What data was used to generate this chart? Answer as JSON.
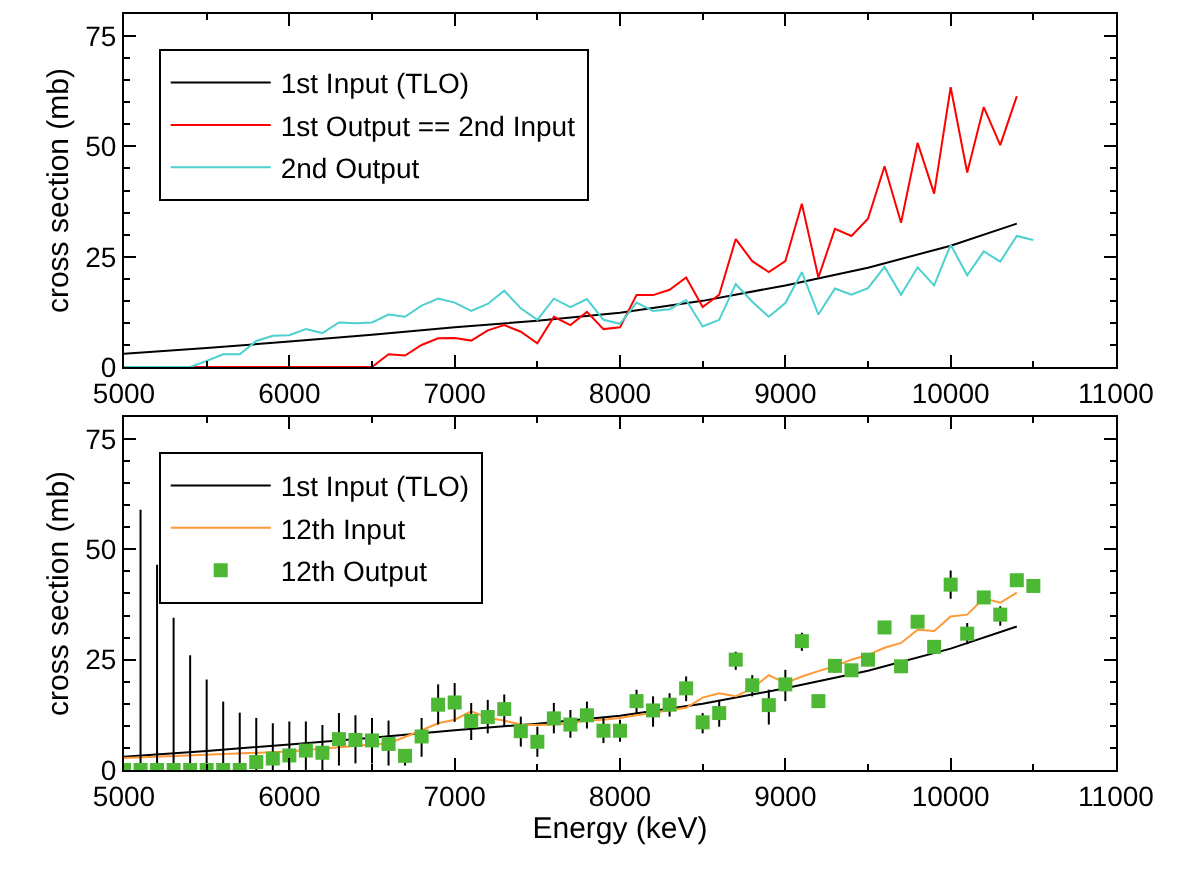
{
  "chart_data": [
    {
      "type": "line",
      "ylabel": "cross section (mb)",
      "xlim": [
        5000,
        11000
      ],
      "xticks": [
        5000,
        6000,
        7000,
        8000,
        9000,
        10000,
        11000
      ],
      "ylim": [
        0,
        80
      ],
      "yticks": [
        0,
        25,
        50,
        75
      ],
      "legend": "top left",
      "series": [
        {
          "name": "1st Input (TLO)",
          "color": "#000000",
          "x": [
            5000,
            5500,
            6000,
            6500,
            7000,
            7500,
            8000,
            8500,
            9000,
            9500,
            10000,
            10400
          ],
          "values": [
            3,
            4.3,
            5.8,
            7.3,
            9,
            10.5,
            12.3,
            15,
            18.5,
            22.5,
            27.5,
            32.5
          ]
        },
        {
          "name": "1st Output == 2nd Input",
          "color": "#ff0000",
          "x": [
            5000,
            5500,
            6000,
            6500,
            6600,
            6700,
            6800,
            6900,
            7000,
            7100,
            7200,
            7300,
            7400,
            7500,
            7600,
            7700,
            7800,
            7900,
            8000,
            8100,
            8200,
            8300,
            8400,
            8500,
            8600,
            8700,
            8800,
            8900,
            9000,
            9100,
            9200,
            9300,
            9400,
            9500,
            9600,
            9700,
            9800,
            9900,
            10000,
            10100,
            10200,
            10300,
            10400
          ],
          "values": [
            0,
            0,
            0,
            0,
            2.9,
            2.6,
            5,
            6.5,
            6.6,
            6,
            8.3,
            9.5,
            8,
            5.4,
            11.4,
            9.5,
            12.5,
            8.6,
            9,
            16.3,
            16.3,
            17.5,
            20.3,
            13.6,
            16.4,
            29,
            24,
            21.5,
            24,
            37,
            20.3,
            31.3,
            29.7,
            33.6,
            45.5,
            32.7,
            50.8,
            39.3,
            63.4,
            44.1,
            58.9,
            50.3,
            61.4
          ]
        },
        {
          "name": "2nd Output",
          "color": "#4dd0d0",
          "x": [
            5000,
            5200,
            5400,
            5500,
            5600,
            5700,
            5800,
            5900,
            6000,
            6100,
            6200,
            6300,
            6400,
            6500,
            6600,
            6700,
            6800,
            6900,
            7000,
            7100,
            7200,
            7300,
            7400,
            7500,
            7600,
            7700,
            7800,
            7900,
            8000,
            8100,
            8200,
            8300,
            8400,
            8500,
            8600,
            8700,
            8800,
            8900,
            9000,
            9100,
            9200,
            9300,
            9400,
            9500,
            9600,
            9700,
            9800,
            9900,
            10000,
            10100,
            10200,
            10300,
            10400,
            10500
          ],
          "values": [
            0,
            0,
            0,
            1.4,
            2.9,
            2.9,
            5.9,
            7.1,
            7.2,
            8.6,
            7.7,
            10.1,
            9.9,
            10.1,
            11.9,
            11.4,
            13.9,
            15.5,
            14.6,
            12.7,
            14.3,
            17.3,
            13.3,
            10.7,
            15.5,
            13.6,
            15.4,
            10.7,
            9.8,
            14.6,
            12.7,
            13.1,
            15.2,
            9.2,
            10.7,
            18.8,
            14.8,
            11.4,
            14.5,
            21.5,
            11.9,
            17.8,
            16.4,
            17.9,
            22.7,
            16.4,
            22.6,
            18.5,
            27.7,
            20.8,
            26.2,
            23.9,
            29.7,
            28.8
          ]
        }
      ]
    },
    {
      "type": "line",
      "xlabel": "Energy (keV)",
      "ylabel": "cross section (mb)",
      "xlim": [
        5000,
        11000
      ],
      "xticks": [
        5000,
        6000,
        7000,
        8000,
        9000,
        10000,
        11000
      ],
      "ylim": [
        0,
        80
      ],
      "yticks": [
        0,
        25,
        50,
        75
      ],
      "legend": "top left",
      "series": [
        {
          "name": "1st Input (TLO)",
          "color": "#000000",
          "x": [
            5000,
            5500,
            6000,
            6500,
            7000,
            7500,
            8000,
            8500,
            9000,
            9500,
            10000,
            10400
          ],
          "values": [
            3,
            4.3,
            5.8,
            7.3,
            9,
            10.5,
            12.3,
            15,
            18.5,
            22.5,
            27.5,
            32.5
          ]
        },
        {
          "name": "12th Input",
          "color": "#ff9933",
          "x": [
            5000,
            6000,
            6500,
            6600,
            6800,
            6900,
            7000,
            7100,
            7200,
            7300,
            7400,
            7500,
            7600,
            7700,
            7800,
            7900,
            8000,
            8100,
            8200,
            8300,
            8400,
            8500,
            8600,
            8700,
            8800,
            8900,
            9000,
            9100,
            9200,
            9300,
            9400,
            9500,
            9600,
            9700,
            9800,
            9900,
            10000,
            10100,
            10200,
            10300,
            10400
          ],
          "values": [
            2.7,
            4.2,
            5.8,
            6,
            9,
            10.6,
            11.4,
            13.3,
            11.8,
            11.2,
            10.3,
            10.2,
            10.3,
            10.6,
            11.2,
            11.4,
            11.8,
            12.4,
            12.9,
            13.6,
            14.1,
            16.4,
            17.4,
            16.7,
            18.5,
            21.5,
            19.7,
            21.2,
            22.4,
            23.5,
            25,
            26.1,
            27.7,
            28.8,
            31.8,
            31.5,
            34.8,
            35.2,
            38.9,
            37.9,
            40.2
          ]
        },
        {
          "name": "12th Output",
          "type": "scatter",
          "marker": "square",
          "color": "#4db833",
          "x": [
            5000,
            5100,
            5200,
            5300,
            5400,
            5500,
            5600,
            5700,
            5800,
            5900,
            6000,
            6100,
            6200,
            6300,
            6400,
            6500,
            6600,
            6700,
            6800,
            6900,
            7000,
            7100,
            7200,
            7300,
            7400,
            7500,
            7600,
            7700,
            7800,
            7900,
            8000,
            8100,
            8200,
            8300,
            8400,
            8500,
            8600,
            8700,
            8800,
            8900,
            9000,
            9100,
            9200,
            9300,
            9400,
            9500,
            9600,
            9700,
            9800,
            9900,
            10000,
            10100,
            10200,
            10300,
            10400,
            10500
          ],
          "values": [
            0,
            0,
            0,
            0,
            0,
            0,
            0,
            0,
            1.8,
            2.6,
            3.3,
            4.4,
            3.9,
            7,
            6.8,
            6.7,
            5.9,
            3.2,
            7.6,
            14.8,
            15.3,
            11.1,
            12,
            13.8,
            8.8,
            6.4,
            11.7,
            10.3,
            12.4,
            8.9,
            8.9,
            15.6,
            13.5,
            14.8,
            18.5,
            10.8,
            12.9,
            25,
            19.2,
            14.7,
            19.4,
            29.2,
            15.6,
            23.6,
            22.6,
            25,
            32.3,
            23.5,
            33.6,
            27.9,
            42,
            30.9,
            39.1,
            35.2,
            43,
            41.7
          ],
          "errors": [
            null,
            [
              0,
              59
            ],
            [
              0,
              46.5
            ],
            [
              0,
              34.5
            ],
            [
              0,
              26
            ],
            [
              0,
              20.5
            ],
            [
              0,
              15.5
            ],
            [
              0,
              13
            ],
            [
              0,
              11.8
            ],
            [
              0,
              10.6
            ],
            [
              0,
              11
            ],
            [
              0,
              11
            ],
            [
              0,
              10.2
            ],
            [
              1,
              12.9
            ],
            [
              1.5,
              12.4
            ],
            [
              1.5,
              11.8
            ],
            [
              1,
              11.2
            ],
            [
              1,
              4.5
            ],
            [
              3,
              11.8
            ],
            [
              10.3,
              19.4
            ],
            [
              10.9,
              19.7
            ],
            [
              6.8,
              15.2
            ],
            [
              8.3,
              15.9
            ],
            [
              9.8,
              17.1
            ],
            [
              5.3,
              12.1
            ],
            [
              3,
              9.8
            ],
            [
              8.3,
              15.2
            ],
            [
              7.3,
              13.6
            ],
            [
              9.4,
              15.5
            ],
            [
              6.1,
              12.1
            ],
            [
              6.4,
              11.4
            ],
            [
              12.9,
              18.2
            ],
            [
              9.8,
              16.7
            ],
            [
              12.1,
              17.4
            ],
            [
              15.6,
              21.2
            ],
            [
              8.3,
              12.9
            ],
            [
              9.8,
              15.9
            ],
            [
              22.7,
              26.8
            ],
            [
              16.7,
              21.5
            ],
            [
              10.3,
              18.2
            ],
            [
              15.6,
              22.7
            ],
            [
              27,
              31.1
            ],
            null,
            [
              22.1,
              24.8
            ],
            null,
            [
              23.5,
              26.5
            ],
            null,
            null,
            null,
            null,
            [
              38.8,
              45.2
            ],
            [
              28.5,
              33.3
            ],
            null,
            [
              32.7,
              37.1
            ],
            null,
            null
          ]
        }
      ]
    }
  ]
}
